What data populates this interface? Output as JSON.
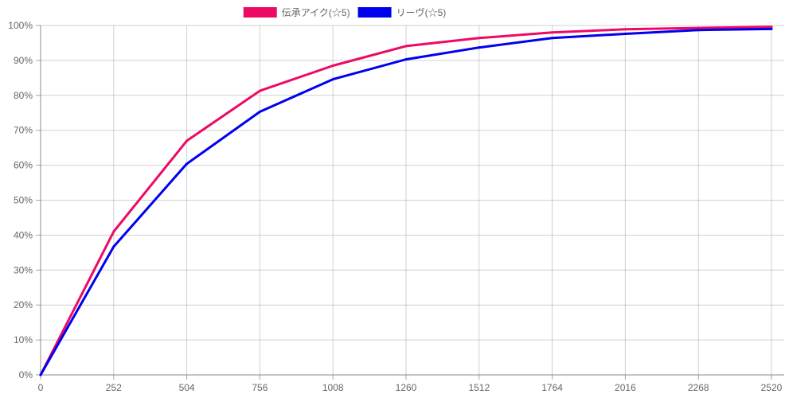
{
  "chart_data": {
    "type": "line",
    "title": "",
    "xlabel": "",
    "ylabel": "",
    "x": [
      0,
      252,
      504,
      756,
      1008,
      1260,
      1512,
      1764,
      2016,
      2268,
      2520
    ],
    "x_tick_labels": [
      "0",
      "252",
      "504",
      "756",
      "1008",
      "1260",
      "1512",
      "1764",
      "2016",
      "2268",
      "2520"
    ],
    "y_tick_labels": [
      "0%",
      "10%",
      "20%",
      "30%",
      "40%",
      "50%",
      "60%",
      "70%",
      "80%",
      "90%",
      "100%"
    ],
    "ylim": [
      0,
      100
    ],
    "grid": true,
    "legend_position": "top",
    "series": [
      {
        "name": "伝承アイク(☆5)",
        "color": "#ee0a64",
        "values": [
          0,
          41,
          67,
          81.3,
          88.5,
          94.1,
          96.4,
          98,
          98.9,
          99.3,
          99.6
        ]
      },
      {
        "name": "リーヴ(☆5)",
        "color": "#0000ee",
        "values": [
          0,
          36.7,
          60.4,
          75.3,
          84.6,
          90.3,
          93.7,
          96.4,
          97.6,
          98.7,
          99
        ]
      }
    ]
  }
}
